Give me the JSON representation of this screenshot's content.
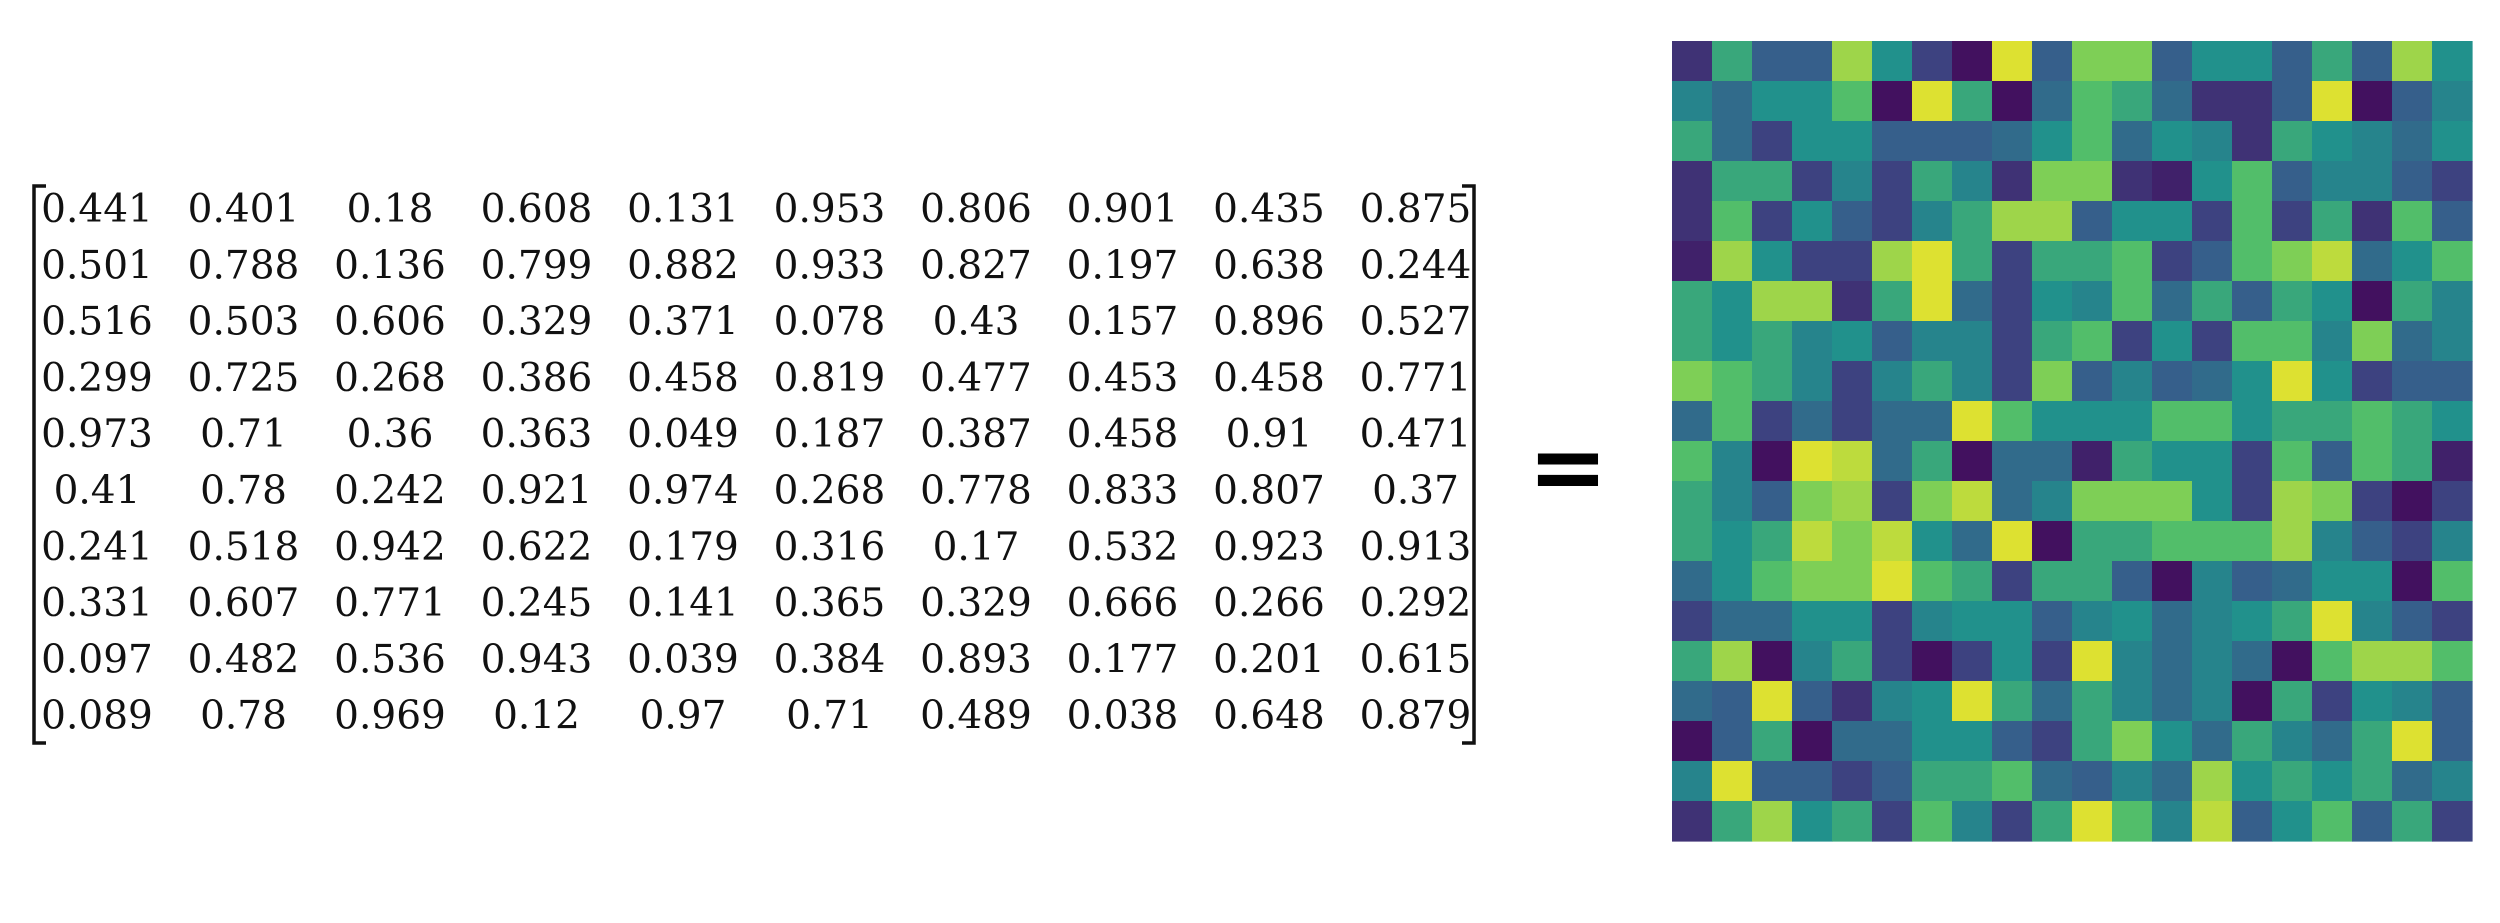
{
  "matrix": {
    "rows": [
      [
        "0.441",
        "0.401",
        "0.18",
        "0.608",
        "0.131",
        "0.953",
        "0.806",
        "0.901",
        "0.435",
        "0.875"
      ],
      [
        "0.501",
        "0.788",
        "0.136",
        "0.799",
        "0.882",
        "0.933",
        "0.827",
        "0.197",
        "0.638",
        "0.244"
      ],
      [
        "0.516",
        "0.503",
        "0.606",
        "0.329",
        "0.371",
        "0.078",
        "0.43",
        "0.157",
        "0.896",
        "0.527"
      ],
      [
        "0.299",
        "0.725",
        "0.268",
        "0.386",
        "0.458",
        "0.819",
        "0.477",
        "0.453",
        "0.458",
        "0.771"
      ],
      [
        "0.973",
        "0.71",
        "0.36",
        "0.363",
        "0.049",
        "0.187",
        "0.387",
        "0.458",
        "0.91",
        "0.471"
      ],
      [
        "0.41",
        "0.78",
        "0.242",
        "0.921",
        "0.974",
        "0.268",
        "0.778",
        "0.833",
        "0.807",
        "0.37"
      ],
      [
        "0.241",
        "0.518",
        "0.942",
        "0.622",
        "0.179",
        "0.316",
        "0.17",
        "0.532",
        "0.923",
        "0.913"
      ],
      [
        "0.331",
        "0.607",
        "0.771",
        "0.245",
        "0.141",
        "0.365",
        "0.329",
        "0.666",
        "0.266",
        "0.292"
      ],
      [
        "0.097",
        "0.482",
        "0.536",
        "0.943",
        "0.039",
        "0.384",
        "0.893",
        "0.177",
        "0.201",
        "0.615"
      ],
      [
        "0.089",
        "0.78",
        "0.969",
        "0.12",
        "0.97",
        "0.71",
        "0.489",
        "0.038",
        "0.648",
        "0.879"
      ]
    ]
  },
  "equals": {
    "symbol": "="
  },
  "heatmap": {
    "colormap": "viridis",
    "rows": 20,
    "cols": 20,
    "values": [
      [
        0.15,
        0.6,
        0.3,
        0.3,
        0.85,
        0.5,
        0.2,
        0.05,
        0.95,
        0.3,
        0.8,
        0.8,
        0.3,
        0.5,
        0.5,
        0.3,
        0.6,
        0.3,
        0.85,
        0.5
      ],
      [
        0.45,
        0.35,
        0.5,
        0.5,
        0.7,
        0.05,
        0.95,
        0.6,
        0.05,
        0.35,
        0.7,
        0.6,
        0.35,
        0.15,
        0.15,
        0.3,
        0.95,
        0.05,
        0.3,
        0.45
      ],
      [
        0.6,
        0.35,
        0.2,
        0.5,
        0.5,
        0.3,
        0.3,
        0.3,
        0.35,
        0.5,
        0.7,
        0.35,
        0.5,
        0.45,
        0.15,
        0.6,
        0.5,
        0.45,
        0.35,
        0.5
      ],
      [
        0.15,
        0.6,
        0.6,
        0.2,
        0.45,
        0.2,
        0.6,
        0.45,
        0.15,
        0.8,
        0.8,
        0.15,
        0.1,
        0.5,
        0.7,
        0.3,
        0.45,
        0.45,
        0.3,
        0.2
      ],
      [
        0.15,
        0.7,
        0.2,
        0.5,
        0.3,
        0.2,
        0.45,
        0.6,
        0.85,
        0.85,
        0.3,
        0.5,
        0.5,
        0.2,
        0.7,
        0.2,
        0.6,
        0.15,
        0.7,
        0.3
      ],
      [
        0.1,
        0.85,
        0.5,
        0.2,
        0.2,
        0.85,
        0.95,
        0.6,
        0.2,
        0.6,
        0.6,
        0.7,
        0.2,
        0.3,
        0.7,
        0.8,
        0.9,
        0.35,
        0.5,
        0.7
      ],
      [
        0.6,
        0.5,
        0.85,
        0.85,
        0.15,
        0.6,
        0.95,
        0.35,
        0.2,
        0.5,
        0.45,
        0.7,
        0.35,
        0.6,
        0.3,
        0.6,
        0.5,
        0.05,
        0.6,
        0.45
      ],
      [
        0.6,
        0.5,
        0.6,
        0.45,
        0.5,
        0.3,
        0.45,
        0.45,
        0.2,
        0.6,
        0.7,
        0.2,
        0.5,
        0.2,
        0.7,
        0.7,
        0.45,
        0.8,
        0.35,
        0.45
      ],
      [
        0.8,
        0.7,
        0.6,
        0.45,
        0.2,
        0.45,
        0.6,
        0.45,
        0.2,
        0.8,
        0.3,
        0.45,
        0.3,
        0.35,
        0.5,
        0.95,
        0.5,
        0.2,
        0.3,
        0.3
      ],
      [
        0.35,
        0.7,
        0.2,
        0.35,
        0.2,
        0.35,
        0.35,
        0.95,
        0.7,
        0.5,
        0.5,
        0.5,
        0.7,
        0.7,
        0.5,
        0.6,
        0.6,
        0.7,
        0.6,
        0.5
      ],
      [
        0.7,
        0.45,
        0.05,
        0.95,
        0.9,
        0.35,
        0.6,
        0.05,
        0.35,
        0.35,
        0.1,
        0.6,
        0.5,
        0.5,
        0.2,
        0.7,
        0.3,
        0.7,
        0.6,
        0.1
      ],
      [
        0.6,
        0.45,
        0.3,
        0.8,
        0.85,
        0.2,
        0.8,
        0.9,
        0.35,
        0.45,
        0.8,
        0.8,
        0.8,
        0.5,
        0.2,
        0.85,
        0.8,
        0.2,
        0.05,
        0.2
      ],
      [
        0.6,
        0.5,
        0.6,
        0.9,
        0.8,
        0.9,
        0.5,
        0.35,
        0.95,
        0.05,
        0.6,
        0.6,
        0.7,
        0.7,
        0.7,
        0.85,
        0.45,
        0.3,
        0.2,
        0.45
      ],
      [
        0.35,
        0.5,
        0.7,
        0.8,
        0.8,
        0.95,
        0.7,
        0.6,
        0.2,
        0.6,
        0.6,
        0.3,
        0.05,
        0.45,
        0.3,
        0.35,
        0.5,
        0.5,
        0.05,
        0.7
      ],
      [
        0.2,
        0.35,
        0.35,
        0.5,
        0.5,
        0.2,
        0.45,
        0.5,
        0.5,
        0.3,
        0.45,
        0.5,
        0.35,
        0.45,
        0.5,
        0.6,
        0.95,
        0.45,
        0.3,
        0.2
      ],
      [
        0.6,
        0.85,
        0.05,
        0.45,
        0.6,
        0.2,
        0.05,
        0.2,
        0.5,
        0.2,
        0.95,
        0.45,
        0.35,
        0.45,
        0.35,
        0.05,
        0.7,
        0.85,
        0.85,
        0.7
      ],
      [
        0.35,
        0.3,
        0.95,
        0.3,
        0.15,
        0.45,
        0.5,
        0.95,
        0.6,
        0.35,
        0.6,
        0.45,
        0.35,
        0.45,
        0.05,
        0.6,
        0.2,
        0.5,
        0.45,
        0.3
      ],
      [
        0.05,
        0.3,
        0.6,
        0.05,
        0.35,
        0.35,
        0.5,
        0.5,
        0.3,
        0.2,
        0.6,
        0.8,
        0.5,
        0.35,
        0.6,
        0.45,
        0.35,
        0.6,
        0.95,
        0.3
      ],
      [
        0.45,
        0.95,
        0.3,
        0.3,
        0.2,
        0.3,
        0.6,
        0.6,
        0.7,
        0.35,
        0.3,
        0.45,
        0.35,
        0.85,
        0.5,
        0.6,
        0.5,
        0.6,
        0.35,
        0.45
      ],
      [
        0.15,
        0.6,
        0.85,
        0.5,
        0.6,
        0.2,
        0.7,
        0.45,
        0.2,
        0.6,
        0.95,
        0.7,
        0.45,
        0.9,
        0.3,
        0.5,
        0.7,
        0.3,
        0.6,
        0.2
      ]
    ]
  }
}
